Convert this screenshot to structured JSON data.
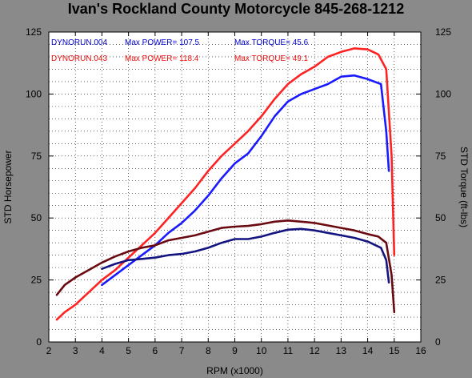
{
  "title": "Ivan's Rockland County Motorcycle  845-268-1212",
  "chart_data": {
    "type": "line",
    "title": "Ivan's Rockland County Motorcycle  845-268-1212",
    "xlabel": "RPM (x1000)",
    "ylabel_left": "STD Horsepower",
    "ylabel_right": "STD Torque (ft-lbs)",
    "xlim": [
      2,
      16
    ],
    "ylim": [
      0,
      125
    ],
    "xticks": [
      2,
      3,
      4,
      5,
      6,
      7,
      8,
      9,
      10,
      11,
      12,
      13,
      14,
      15,
      16
    ],
    "yticks": [
      0,
      25,
      50,
      75,
      100,
      125
    ],
    "grid": true,
    "legend": [
      {
        "run": "DYNORUN.004",
        "power_text": "Max POWER= 107.5",
        "torque_text": "Max TORQUE= 45.6",
        "color": "#0000cc"
      },
      {
        "run": "DYNORUN.043",
        "power_text": "Max POWER= 118.4",
        "torque_text": "Max TORQUE= 49.1",
        "color": "#ee1111"
      }
    ],
    "series": [
      {
        "name": "DYNORUN.004 power",
        "color": "#1a1aff",
        "x": [
          4.0,
          4.5,
          5.0,
          5.5,
          6.0,
          6.5,
          7.0,
          7.5,
          8.0,
          8.5,
          9.0,
          9.5,
          10.0,
          10.5,
          11.0,
          11.5,
          12.0,
          12.5,
          13.0,
          13.5,
          14.0,
          14.5,
          14.7,
          14.8
        ],
        "y": [
          23,
          27,
          31,
          35,
          39,
          44,
          48,
          53,
          59,
          66,
          72,
          76,
          83,
          91,
          97,
          100,
          102,
          104,
          107,
          107.5,
          106,
          104,
          85,
          69
        ]
      },
      {
        "name": "DYNORUN.043 power",
        "color": "#ff2222",
        "x": [
          2.3,
          2.6,
          3.0,
          3.5,
          4.0,
          4.5,
          5.0,
          5.5,
          6.0,
          6.5,
          7.0,
          7.5,
          8.0,
          8.5,
          9.0,
          9.5,
          10.0,
          10.5,
          11.0,
          11.5,
          12.0,
          12.5,
          13.0,
          13.5,
          14.0,
          14.4,
          14.7,
          14.9,
          15.0
        ],
        "y": [
          9,
          12,
          15,
          20,
          25,
          29,
          34,
          39,
          44,
          50,
          56,
          62,
          69,
          75,
          80,
          85,
          91,
          98,
          104,
          108,
          111,
          115,
          117,
          118.4,
          118,
          116,
          110,
          75,
          35
        ]
      },
      {
        "name": "DYNORUN.004 torque",
        "color": "#141480",
        "x": [
          4.0,
          4.5,
          5.0,
          5.5,
          6.0,
          6.5,
          7.0,
          7.5,
          8.0,
          8.5,
          9.0,
          9.5,
          10.0,
          10.5,
          11.0,
          11.5,
          12.0,
          12.5,
          13.0,
          13.5,
          14.0,
          14.5,
          14.7,
          14.8
        ],
        "y": [
          29.5,
          31.5,
          33,
          33.5,
          34,
          35,
          35.5,
          36.5,
          38,
          40,
          41.5,
          41.5,
          42.5,
          44,
          45.3,
          45.6,
          45,
          44,
          43,
          42,
          40.5,
          38,
          33,
          24
        ]
      },
      {
        "name": "DYNORUN.043 torque",
        "color": "#6a0a10",
        "x": [
          2.3,
          2.6,
          3.0,
          3.5,
          4.0,
          4.5,
          5.0,
          5.5,
          6.0,
          6.5,
          7.0,
          7.5,
          8.0,
          8.5,
          9.0,
          9.5,
          10.0,
          10.5,
          11.0,
          11.5,
          12.0,
          12.5,
          13.0,
          13.5,
          14.0,
          14.4,
          14.7,
          14.9,
          15.0
        ],
        "y": [
          19,
          23,
          26,
          29,
          32,
          34.5,
          36.5,
          38,
          39,
          41,
          42,
          43,
          44.5,
          46,
          46.5,
          46.8,
          47.5,
          48.5,
          49,
          48.5,
          48,
          47,
          46,
          45,
          43.5,
          42.5,
          40,
          27,
          12
        ]
      }
    ]
  }
}
